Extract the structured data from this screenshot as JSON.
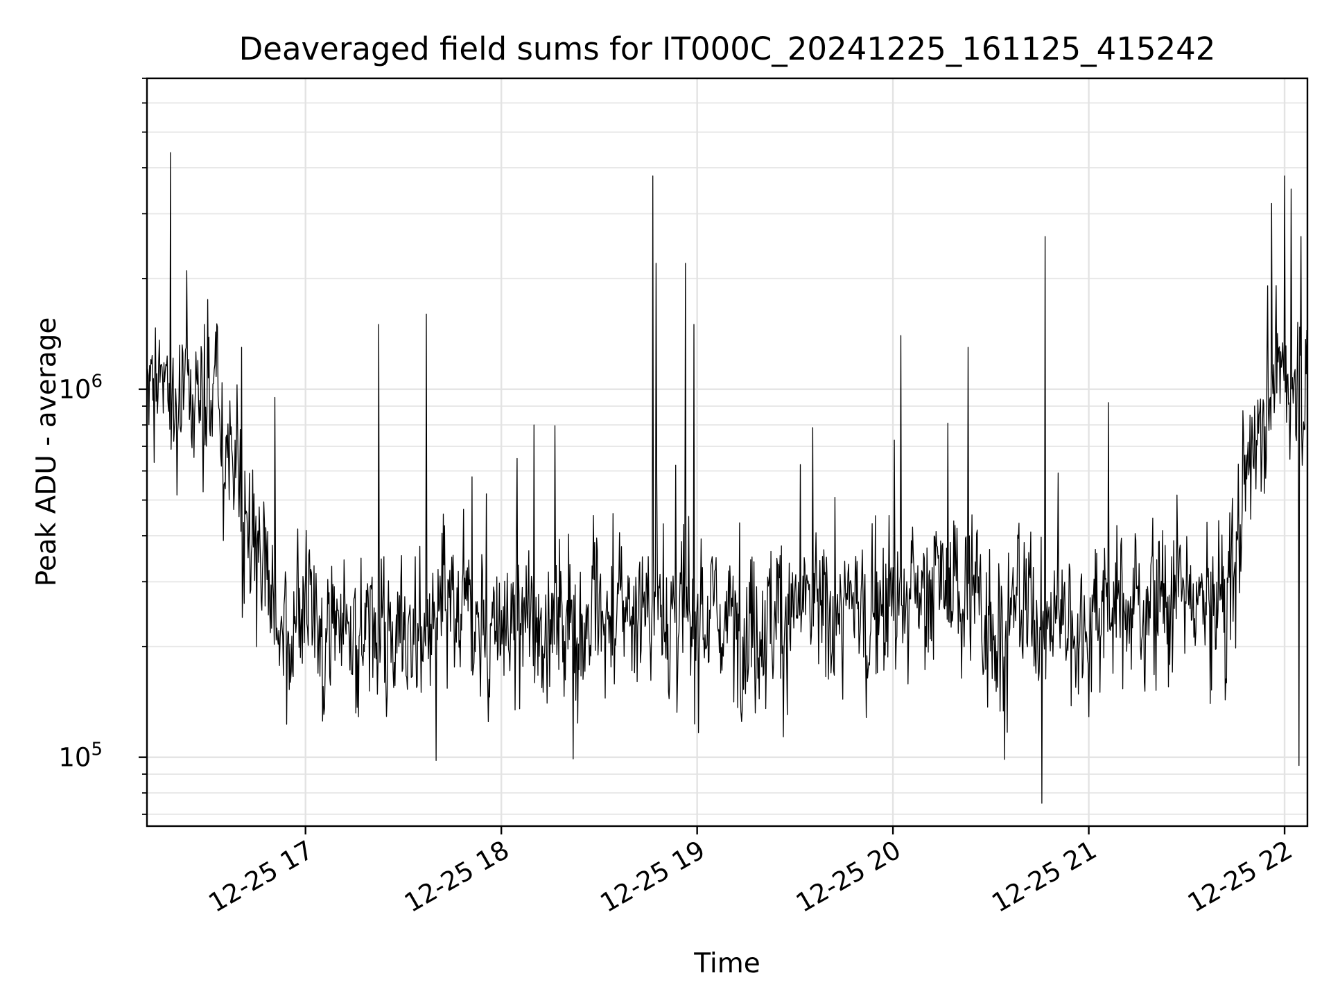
{
  "chart_data": {
    "type": "line",
    "title": "Deaveraged field sums for IT000C_20241225_161125_415242",
    "xlabel": "Time",
    "ylabel": "Peak ADU - average",
    "x_range": [
      "2024-12-25 16:11:25",
      "2024-12-25 22:07:00"
    ],
    "y_scale": "log",
    "ylim": [
      65000,
      7000000
    ],
    "grid": true,
    "x_ticks": [
      {
        "t": "2024-12-25 17:00",
        "label": "12-25 17"
      },
      {
        "t": "2024-12-25 18:00",
        "label": "12-25 18"
      },
      {
        "t": "2024-12-25 19:00",
        "label": "12-25 19"
      },
      {
        "t": "2024-12-25 20:00",
        "label": "12-25 20"
      },
      {
        "t": "2024-12-25 21:00",
        "label": "12-25 21"
      },
      {
        "t": "2024-12-25 22:00",
        "label": "12-25 22"
      }
    ],
    "y_ticks": [
      {
        "value": 100000,
        "base": "10",
        "exp": "5"
      },
      {
        "value": 1000000,
        "base": "10",
        "exp": "6"
      }
    ],
    "series": [
      {
        "color": "#000000",
        "x": [
          "2024-12-25 16:11:25",
          "2024-12-25 22:07:00"
        ],
        "interval_seconds": 12,
        "envelope_minutes": [
          0,
          10,
          20,
          30,
          40,
          50,
          60,
          70,
          80,
          90,
          100,
          110,
          120,
          130,
          140,
          150,
          160,
          170,
          180,
          190,
          200,
          210,
          220,
          230,
          240,
          250,
          260,
          270,
          280,
          290,
          300,
          310,
          320,
          330,
          340,
          350,
          356
        ],
        "envelope_baseline": [
          1100000,
          1000000,
          900000,
          450000,
          250000,
          240000,
          230000,
          230000,
          220000,
          230000,
          230000,
          220000,
          230000,
          240000,
          250000,
          250000,
          240000,
          240000,
          240000,
          240000,
          240000,
          250000,
          260000,
          270000,
          300000,
          280000,
          240000,
          240000,
          240000,
          250000,
          260000,
          280000,
          260000,
          250000,
          900000,
          1100000,
          1000000
        ],
        "spikes": [
          {
            "t": "2024-12-25 16:18:35",
            "y": 4400000
          },
          {
            "t": "2024-12-25 16:23:40",
            "y": 2100000
          },
          {
            "t": "2024-12-25 16:29:00",
            "y": 1500000
          },
          {
            "t": "2024-12-25 16:40:30",
            "y": 1300000
          },
          {
            "t": "2024-12-25 16:50:40",
            "y": 950000
          },
          {
            "t": "2024-12-25 17:22:30",
            "y": 1500000
          },
          {
            "t": "2024-12-25 17:37:00",
            "y": 1600000
          },
          {
            "t": "2024-12-25 17:40:00",
            "y": 98000
          },
          {
            "t": "2024-12-25 18:10:00",
            "y": 800000
          },
          {
            "t": "2024-12-25 18:22:00",
            "y": 99000
          },
          {
            "t": "2024-12-25 18:46:30",
            "y": 3800000
          },
          {
            "t": "2024-12-25 18:47:30",
            "y": 2200000
          },
          {
            "t": "2024-12-25 18:56:30",
            "y": 2200000
          },
          {
            "t": "2024-12-25 18:59:00",
            "y": 1500000
          },
          {
            "t": "2024-12-25 20:02:30",
            "y": 1400000
          },
          {
            "t": "2024-12-25 20:23:00",
            "y": 1300000
          },
          {
            "t": "2024-12-25 20:45:40",
            "y": 75000
          },
          {
            "t": "2024-12-25 20:46:40",
            "y": 2600000
          },
          {
            "t": "2024-12-25 21:06:00",
            "y": 920000
          },
          {
            "t": "2024-12-25 21:56:00",
            "y": 3200000
          },
          {
            "t": "2024-12-25 22:00:00",
            "y": 3800000
          },
          {
            "t": "2024-12-25 22:02:00",
            "y": 3500000
          },
          {
            "t": "2024-12-25 22:05:00",
            "y": 2600000
          },
          {
            "t": "2024-12-25 22:04:30",
            "y": 95000
          }
        ]
      }
    ]
  }
}
